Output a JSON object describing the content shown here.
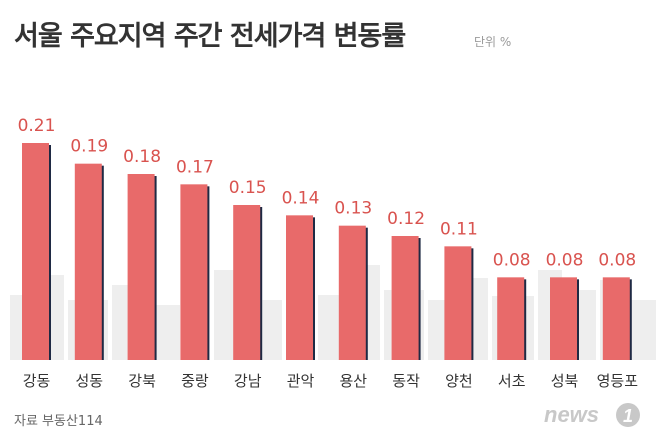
{
  "header": {
    "title": "서울 주요지역 주간 전세가격 변동률",
    "unit": "단위 %"
  },
  "footer": {
    "source": "자료 부동산114"
  },
  "logo": {
    "text": "news",
    "number": "1"
  },
  "colors": {
    "bar": "#e86a6a",
    "bar_shadow": "#1f2a44",
    "value_label": "#d9534f",
    "category_label": "#333333",
    "skyline": "#eeeeee"
  },
  "chart_data": {
    "type": "bar",
    "title": "서울 주요지역 주간 전세가격 변동률",
    "unit": "%",
    "categories": [
      "강동",
      "성동",
      "강북",
      "중랑",
      "강남",
      "관악",
      "용산",
      "동작",
      "양천",
      "서초",
      "성북",
      "영등포"
    ],
    "values": [
      0.21,
      0.19,
      0.18,
      0.17,
      0.15,
      0.14,
      0.13,
      0.12,
      0.11,
      0.08,
      0.08,
      0.08
    ],
    "value_labels": [
      "0.21",
      "0.19",
      "0.18",
      "0.17",
      "0.15",
      "0.14",
      "0.13",
      "0.12",
      "0.11",
      "0.08",
      "0.08",
      "0.08"
    ],
    "ylim": [
      0,
      0.21
    ],
    "grid": false,
    "legend": "none"
  }
}
